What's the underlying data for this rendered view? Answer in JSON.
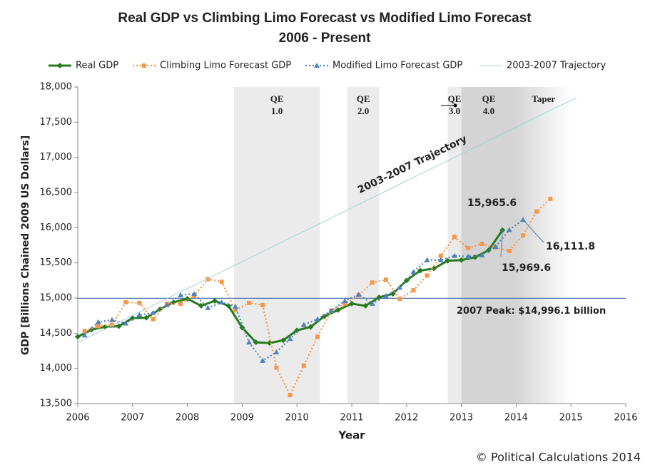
{
  "chart_data": {
    "type": "line",
    "title": "Real GDP vs Climbing Limo Forecast vs Modified Limo Forecast",
    "subtitle": "2006 - Present",
    "x_label": "Year",
    "y_label": "GDP [Billions Chained 2009 US Dollars]",
    "xlim": [
      2006,
      2016
    ],
    "xticks": [
      2006,
      2007,
      2008,
      2009,
      2010,
      2011,
      2012,
      2013,
      2014,
      2015,
      2016
    ],
    "ylim": [
      13500,
      18000
    ],
    "yticks": [
      {
        "value": 13500,
        "label": "13,500"
      },
      {
        "value": 14000,
        "label": "14,000"
      },
      {
        "value": 14500,
        "label": "14,500"
      },
      {
        "value": 15000,
        "label": "15,000"
      },
      {
        "value": 15500,
        "label": "15,500"
      },
      {
        "value": 16000,
        "label": "16,000"
      },
      {
        "value": 16500,
        "label": "16,500"
      },
      {
        "value": 17000,
        "label": "17,000"
      },
      {
        "value": 17500,
        "label": "17,500"
      },
      {
        "value": 18000,
        "label": "18,000"
      }
    ],
    "legend": "top",
    "shaded_regions": [
      {
        "label": [
          "QE",
          "1.0"
        ],
        "start": 2008.85,
        "end": 2010.42,
        "color": "#ebebeb"
      },
      {
        "label": [
          "QE",
          "2.0"
        ],
        "start": 2010.92,
        "end": 2011.5,
        "color": "#ebebeb"
      },
      {
        "label": [
          "QE",
          "3.0"
        ],
        "start": 2012.75,
        "end": 2013.0,
        "color": "#ebebeb"
      },
      {
        "label": [
          "QE",
          "4.0"
        ],
        "start": 2013.0,
        "end": 2014.0,
        "color": "#d4d4d4"
      },
      {
        "label": [
          "Taper"
        ],
        "start": 2014.0,
        "end": 2015.0,
        "color": "#d4d4d4",
        "fade": true
      }
    ],
    "series": [
      {
        "name": "Real GDP",
        "color": "#267a1e",
        "style": "solid",
        "marker": "diamond",
        "x": [
          2006,
          2006.25,
          2006.5,
          2006.75,
          2007,
          2007.25,
          2007.5,
          2007.75,
          2008,
          2008.25,
          2008.5,
          2008.75,
          2009,
          2009.25,
          2009.5,
          2009.75,
          2010,
          2010.25,
          2010.5,
          2010.75,
          2011,
          2011.25,
          2011.5,
          2011.75,
          2012,
          2012.25,
          2012.5,
          2012.75,
          2013,
          2013.25,
          2013.5,
          2013.75
        ],
        "values": [
          14450,
          14550,
          14590,
          14600,
          14715,
          14720,
          14840,
          14940,
          14990,
          14890,
          14960,
          14890,
          14580,
          14370,
          14360,
          14400,
          14540,
          14590,
          14740,
          14830,
          14920,
          14890,
          15010,
          15060,
          15250,
          15390,
          15420,
          15530,
          15540,
          15580,
          15680,
          15965.6
        ]
      },
      {
        "name": "Climbing Limo Forecast GDP",
        "color": "#f79646",
        "style": "dotted",
        "marker": "square",
        "x": [
          2006.125,
          2006.375,
          2006.625,
          2006.875,
          2007.125,
          2007.375,
          2007.625,
          2007.875,
          2008.125,
          2008.375,
          2008.625,
          2008.875,
          2009.125,
          2009.375,
          2009.625,
          2009.875,
          2010.125,
          2010.375,
          2010.625,
          2010.875,
          2011.125,
          2011.375,
          2011.625,
          2011.875,
          2012.125,
          2012.375,
          2012.625,
          2012.875,
          2013.125,
          2013.375,
          2013.625,
          2013.875,
          2014.125,
          2014.375,
          2014.625
        ],
        "values": [
          14530,
          14600,
          14620,
          14940,
          14930,
          14700,
          14920,
          14920,
          15030,
          15270,
          15230,
          14830,
          14930,
          14900,
          14010,
          13620,
          14040,
          14450,
          14820,
          14920,
          15040,
          15220,
          15260,
          14990,
          15110,
          15320,
          15600,
          15870,
          15710,
          15770,
          15720,
          15670,
          15890,
          16230,
          16410
        ]
      },
      {
        "name": "Modified Limo Forecast GDP",
        "color": "#4f81bd",
        "style": "dotted",
        "marker": "triangle",
        "x": [
          2006.125,
          2006.375,
          2006.625,
          2006.875,
          2007.125,
          2007.375,
          2007.625,
          2007.875,
          2008.125,
          2008.375,
          2008.625,
          2008.875,
          2009.125,
          2009.375,
          2009.625,
          2009.875,
          2010.125,
          2010.375,
          2010.625,
          2010.875,
          2011.125,
          2011.375,
          2011.625,
          2011.875,
          2012.125,
          2012.375,
          2012.625,
          2012.875,
          2013.125,
          2013.375,
          2013.625,
          2013.875,
          2014.125
        ],
        "values": [
          14470,
          14660,
          14690,
          14640,
          14760,
          14790,
          14900,
          15040,
          15060,
          14860,
          14940,
          14880,
          14370,
          14110,
          14230,
          14420,
          14620,
          14700,
          14820,
          14960,
          15050,
          14920,
          15030,
          15150,
          15370,
          15540,
          15540,
          15600,
          15590,
          15610,
          15730,
          15969.6,
          16111.8
        ]
      },
      {
        "name": "2003-2007 Trajectory",
        "color": "#9fd3dc",
        "style": "thin",
        "marker": "none",
        "x": [
          2006,
          2015.1
        ],
        "values": [
          14370,
          17850
        ]
      }
    ],
    "reference_line": {
      "value": 14996.1,
      "color": "#4a74a8",
      "label": "2007 Peak: $14,996.1 billion"
    },
    "annotations": [
      "15,965.6",
      "15,969.6",
      "16,111.8",
      "2003-2007 Trajectory"
    ],
    "credit": "© Political Calculations 2014"
  }
}
